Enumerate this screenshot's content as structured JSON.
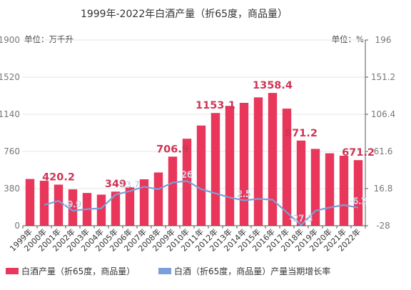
{
  "chart_data": {
    "type": "bar",
    "title": "1999年-2022年白酒产量（折65度，商品量）",
    "left_unit": "单位：万千升",
    "right_unit": "单位：%",
    "categories": [
      "1999年",
      "2000年",
      "2001年",
      "2002年",
      "2003年",
      "2004年",
      "2005年",
      "2006年",
      "2007年",
      "2008年",
      "2009年",
      "2010年",
      "2011年",
      "2012年",
      "2013年",
      "2014年",
      "2015年",
      "2016年",
      "2017年",
      "2018年",
      "2019年",
      "2020年",
      "2021年",
      "2022年"
    ],
    "series": [
      {
        "name": "白酒产量（折65度，商品量）",
        "axis": "left",
        "values": [
          478,
          460,
          420.2,
          372,
          335,
          318,
          349,
          395,
          475,
          545,
          706.9,
          890,
          1025,
          1153.1,
          1226,
          1257,
          1313,
          1358.4,
          1198,
          871.2,
          786,
          741,
          716,
          671.2
        ],
        "color": "#e8375a"
      },
      {
        "name": "白酒（折65度，商品量）产量当期增长率",
        "axis": "right",
        "values": [
          null,
          -3,
          2,
          -9.9,
          -8,
          -7,
          9.6,
          13.7,
          19,
          16,
          24,
          26,
          16,
          11,
          6,
          2.5,
          4.4,
          3.4,
          -12,
          -27.3,
          -10,
          -6,
          -3,
          -6.2
        ],
        "color": "#7b9fd9"
      }
    ],
    "data_labels": [
      {
        "series": 0,
        "index": 2,
        "text": "420.2"
      },
      {
        "series": 0,
        "index": 6,
        "text": "349"
      },
      {
        "series": 0,
        "index": 10,
        "text": "706.9"
      },
      {
        "series": 0,
        "index": 13,
        "text": "1153.1"
      },
      {
        "series": 0,
        "index": 17,
        "text": "1358.4"
      },
      {
        "series": 0,
        "index": 19,
        "text": "871.2"
      },
      {
        "series": 0,
        "index": 23,
        "text": "671.2"
      },
      {
        "series": 1,
        "index": 3,
        "text": "-9.9"
      },
      {
        "series": 1,
        "index": 7,
        "text": "13.7"
      },
      {
        "series": 1,
        "index": 11,
        "text": "26"
      },
      {
        "series": 1,
        "index": 15,
        "text": "2.5"
      },
      {
        "series": 1,
        "index": 19,
        "text": "-27.3"
      },
      {
        "series": 1,
        "index": 23,
        "text": "-6.2"
      }
    ],
    "left_axis": {
      "ticks": [
        "0",
        "380",
        "760",
        "1140",
        "1520",
        "1900"
      ],
      "range": [
        0,
        1900
      ]
    },
    "right_axis": {
      "ticks": [
        "-28",
        "16.8",
        "61.6",
        "106.4",
        "151.2",
        "196"
      ],
      "range": [
        -28,
        196
      ]
    },
    "grid": true,
    "legend_position": "bottom-left"
  }
}
